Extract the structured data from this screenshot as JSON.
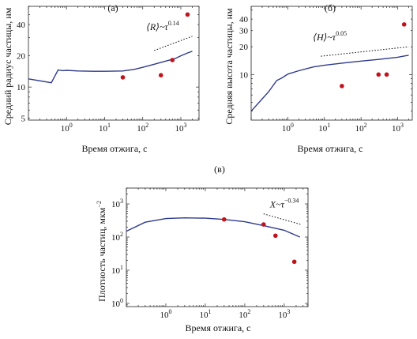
{
  "figure": {
    "xlabel": "Время отжига, с",
    "line_color": "#2e3a8c",
    "point_color": "#c0141c"
  },
  "chart_data": [
    {
      "type": "line",
      "panel_label": "(а)",
      "xlabel": "Время отжига, с",
      "ylabel": "Средний радиус частицы, нм",
      "x_scale": "log",
      "y_scale": "log",
      "xlim": [
        0.1,
        3000
      ],
      "ylim": [
        4.8,
        60
      ],
      "x_ticks": [
        {
          "v": 1,
          "label": "10",
          "exp": "0"
        },
        {
          "v": 10,
          "label": "10",
          "exp": "1"
        },
        {
          "v": 100,
          "label": "10",
          "exp": "2"
        },
        {
          "v": 1000,
          "label": "10",
          "exp": "3"
        }
      ],
      "y_ticks": [
        {
          "v": 5,
          "label": "5"
        },
        {
          "v": 10,
          "label": "10"
        },
        {
          "v": 20,
          "label": "20"
        },
        {
          "v": 40,
          "label": "40"
        }
      ],
      "series": [
        {
          "kind": "line",
          "x": [
            0.1,
            0.4,
            0.6,
            0.8,
            1,
            2,
            5,
            10,
            30,
            60,
            100,
            200,
            400,
            700,
            1000,
            1500,
            2000
          ],
          "y": [
            12.0,
            11.0,
            14.6,
            14.4,
            14.5,
            14.3,
            14.2,
            14.2,
            14.3,
            14.8,
            15.5,
            16.6,
            17.8,
            18.8,
            20.0,
            21.3,
            22.1
          ]
        },
        {
          "kind": "scatter",
          "x": [
            30,
            300,
            600,
            1500
          ],
          "y": [
            12.4,
            13.0,
            18.2,
            50.0
          ]
        }
      ],
      "annotation": {
        "text": "⟨R⟩~τ",
        "exponent": "0.14",
        "x": [
          200,
          2000
        ],
        "y": [
          22.5,
          30.9
        ]
      }
    },
    {
      "type": "line",
      "panel_label": "(б)",
      "xlabel": "Время отжига, с",
      "ylabel": "Средняя высота частицы, нм",
      "x_scale": "log",
      "y_scale": "log",
      "xlim": [
        0.1,
        2500
      ],
      "ylim": [
        3.2,
        55
      ],
      "x_ticks": [
        {
          "v": 1,
          "label": "10",
          "exp": "0"
        },
        {
          "v": 10,
          "label": "10",
          "exp": "1"
        },
        {
          "v": 100,
          "label": "10",
          "exp": "2"
        },
        {
          "v": 1000,
          "label": "10",
          "exp": "3"
        }
      ],
      "y_ticks": [
        {
          "v": 10,
          "label": "10"
        },
        {
          "v": 20,
          "label": "20"
        },
        {
          "v": 30,
          "label": "30"
        },
        {
          "v": 40,
          "label": "40"
        }
      ],
      "series": [
        {
          "kind": "line",
          "x": [
            0.1,
            0.3,
            0.5,
            0.7,
            1,
            2,
            5,
            10,
            30,
            100,
            300,
            1000,
            2000
          ],
          "y": [
            4.0,
            6.5,
            8.6,
            9.2,
            10.1,
            11.0,
            12.1,
            12.6,
            13.3,
            14.0,
            14.6,
            15.4,
            16.2
          ]
        },
        {
          "kind": "scatter",
          "x": [
            30,
            300,
            500,
            1500
          ],
          "y": [
            7.5,
            10.0,
            10.0,
            35.0
          ]
        }
      ],
      "annotation": {
        "text": "⟨H⟩~τ",
        "exponent": "0.05",
        "x": [
          8,
          2000
        ],
        "y": [
          15.8,
          20.0
        ]
      }
    },
    {
      "type": "line",
      "panel_label": "(в)",
      "xlabel": "Время отжига, с",
      "ylabel": "Плотность частиц, мкм",
      "ylabel_exp": "−2",
      "x_scale": "log",
      "y_scale": "log",
      "xlim": [
        0.1,
        4000
      ],
      "ylim": [
        0.8,
        3000
      ],
      "x_ticks": [
        {
          "v": 1,
          "label": "10",
          "exp": "0"
        },
        {
          "v": 10,
          "label": "10",
          "exp": "1"
        },
        {
          "v": 100,
          "label": "10",
          "exp": "2"
        },
        {
          "v": 1000,
          "label": "10",
          "exp": "3"
        }
      ],
      "y_ticks": [
        {
          "v": 1,
          "label": "10",
          "exp": "0"
        },
        {
          "v": 10,
          "label": "10",
          "exp": "1"
        },
        {
          "v": 100,
          "label": "10",
          "exp": "2"
        },
        {
          "v": 1000,
          "label": "10",
          "exp": "3"
        }
      ],
      "series": [
        {
          "kind": "line",
          "x": [
            0.1,
            0.3,
            1,
            3,
            10,
            30,
            100,
            300,
            1000,
            2500
          ],
          "y": [
            150,
            280,
            360,
            380,
            370,
            340,
            290,
            220,
            160,
            100
          ]
        },
        {
          "kind": "scatter",
          "x": [
            30,
            300,
            600,
            1800
          ],
          "y": [
            340,
            240,
            110,
            18
          ]
        }
      ],
      "annotation": {
        "text": "X~τ",
        "exponent": "−0.34",
        "x": [
          300,
          2800
        ],
        "y": [
          500,
          235
        ]
      }
    }
  ]
}
